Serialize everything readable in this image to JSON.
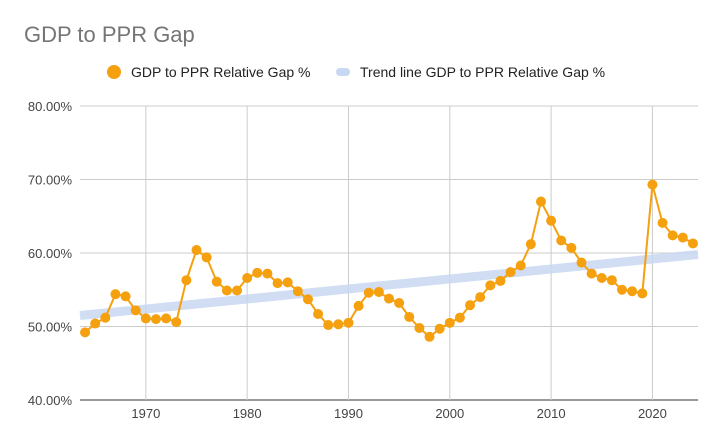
{
  "chart_data": {
    "type": "line",
    "title": "GDP to PPR Gap",
    "xlabel": "",
    "ylabel": "",
    "xlim": [
      1963.5,
      2024.5
    ],
    "ylim": [
      40,
      80
    ],
    "x_ticks": [
      1970,
      1980,
      1990,
      2000,
      2010,
      2020
    ],
    "y_ticks": [
      40,
      50,
      60,
      70,
      80
    ],
    "y_tick_labels": [
      "40.00%",
      "50.00%",
      "60.00%",
      "70.00%",
      "80.00%"
    ],
    "grid": true,
    "legend_position": "top",
    "series": [
      {
        "name": "GDP to PPR Relative Gap %",
        "color": "#F5A00F",
        "x": [
          1964,
          1965,
          1966,
          1967,
          1968,
          1969,
          1970,
          1971,
          1972,
          1973,
          1974,
          1975,
          1976,
          1977,
          1978,
          1979,
          1980,
          1981,
          1982,
          1983,
          1984,
          1985,
          1986,
          1987,
          1988,
          1989,
          1990,
          1991,
          1992,
          1993,
          1994,
          1995,
          1996,
          1997,
          1998,
          1999,
          2000,
          2001,
          2002,
          2003,
          2004,
          2005,
          2006,
          2007,
          2008,
          2009,
          2010,
          2011,
          2012,
          2013,
          2014,
          2015,
          2016,
          2017,
          2018,
          2019,
          2020,
          2021,
          2022,
          2023,
          2024
        ],
        "values": [
          49.2,
          50.4,
          51.2,
          54.4,
          54.1,
          52.2,
          51.1,
          51.0,
          51.1,
          50.6,
          56.3,
          60.4,
          59.4,
          56.1,
          54.9,
          54.9,
          56.6,
          57.3,
          57.2,
          55.9,
          56.0,
          54.8,
          53.7,
          51.7,
          50.2,
          50.3,
          50.5,
          52.8,
          54.6,
          54.7,
          53.8,
          53.2,
          51.3,
          49.8,
          48.6,
          49.7,
          50.5,
          51.2,
          52.9,
          54.0,
          55.6,
          56.2,
          57.4,
          58.3,
          61.2,
          67.0,
          64.4,
          61.7,
          60.7,
          58.7,
          57.2,
          56.6,
          56.3,
          55.0,
          54.8,
          54.5,
          69.3,
          64.1,
          62.4,
          62.1,
          61.3
        ]
      },
      {
        "name": "Trend line GDP to PPR Relative Gap %",
        "color": "#C8D8F2",
        "x": [
          1963.5,
          2024.5
        ],
        "values": [
          51.5,
          59.8
        ]
      }
    ]
  }
}
